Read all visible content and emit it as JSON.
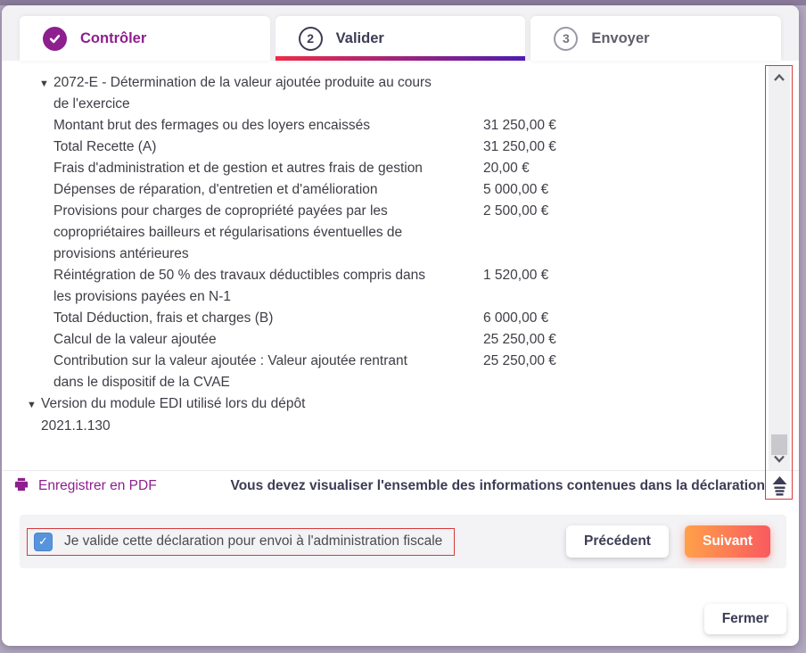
{
  "stepper": {
    "steps": [
      {
        "label": "Contrôler",
        "state": "done"
      },
      {
        "label": "Valider",
        "number": "2",
        "state": "active"
      },
      {
        "label": "Envoyer",
        "number": "3",
        "state": "pending"
      }
    ]
  },
  "report": {
    "sections": [
      {
        "indent": 2,
        "title": "2072-E - Détermination de la valeur ajoutée produite au cours de l'exercice",
        "rows": [
          {
            "label": "Montant brut des fermages ou des loyers encaissés",
            "value": "31 250,00 €"
          },
          {
            "label": "Total Recette (A)",
            "value": "31 250,00 €"
          },
          {
            "label": "Frais d'administration et de gestion et autres frais de gestion",
            "value": "20,00 €"
          },
          {
            "label": "Dépenses de réparation, d'entretien et d'amélioration",
            "value": "5 000,00 €"
          },
          {
            "label": "Provisions pour charges de copropriété payées par les copropriétaires bailleurs et régularisations éventuelles de provisions antérieures",
            "value": "2 500,00 €"
          },
          {
            "label": "Réintégration de 50 % des travaux déductibles compris dans les provisions payées en N-1",
            "value": "1 520,00 €"
          },
          {
            "label": "Total Déduction, frais et charges (B)",
            "value": "6 000,00 €"
          },
          {
            "label": "Calcul de la valeur ajoutée",
            "value": "25 250,00 €"
          },
          {
            "label": "Contribution sur la valeur ajoutée : Valeur ajoutée rentrant dans le dispositif de la CVAE",
            "value": "25 250,00 €"
          }
        ]
      },
      {
        "indent": 1,
        "title": "Version du module EDI utilisé lors du dépôt",
        "rows": [
          {
            "label": "2021.1.130",
            "value": ""
          }
        ]
      }
    ]
  },
  "pdf_bar": {
    "save_pdf_label": "Enregistrer en PDF",
    "notice": "Vous devez visualiser l'ensemble des informations contenues dans la déclaration"
  },
  "footer": {
    "checkbox_label": "Je valide cette déclaration pour envoi à l'administration fiscale",
    "checkbox_checked": true,
    "previous_label": "Précédent",
    "next_label": "Suivant"
  },
  "close_bar": {
    "close_label": "Fermer"
  },
  "colors": {
    "accent_purple": "#8d1f8f",
    "navy_text": "#3c3c55",
    "active_step_gradient_start": "#ef2b47",
    "active_step_gradient_end": "#4e1cb1",
    "next_button_gradient_start": "#ffa149",
    "next_button_gradient_end": "#f95a60",
    "checkbox_blue": "#5794dc",
    "annotation_red": "#d63a3a"
  }
}
